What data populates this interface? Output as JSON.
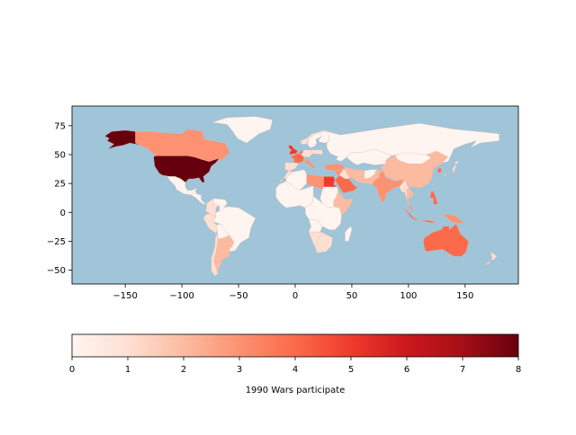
{
  "chart_data": {
    "type": "choropleth-map",
    "title": "",
    "xlabel": "",
    "ylabel": "",
    "xlim": [
      -197,
      197
    ],
    "ylim": [
      -62,
      92
    ],
    "x_ticks": [
      -150,
      -100,
      -50,
      0,
      50,
      100,
      150
    ],
    "y_ticks": [
      -50,
      -25,
      0,
      25,
      50,
      75
    ],
    "x_tick_labels": [
      "−150",
      "−100",
      "−50",
      "0",
      "50",
      "100",
      "150"
    ],
    "y_tick_labels": [
      "−50",
      "−25",
      "0",
      "25",
      "50",
      "75"
    ],
    "ocean_color": "#a0c4d8",
    "colormap": "Reds",
    "colorbar": {
      "label": "1990 Wars participate",
      "range": [
        0,
        8
      ],
      "ticks": [
        0,
        1,
        2,
        3,
        4,
        5,
        6,
        7,
        8
      ],
      "tick_labels": [
        "0",
        "1",
        "2",
        "3",
        "4",
        "5",
        "6",
        "7",
        "8"
      ],
      "orientation": "horizontal"
    },
    "regions": [
      {
        "name": "United States",
        "value": 8
      },
      {
        "name": "Alaska",
        "value": 8
      },
      {
        "name": "Canada",
        "value": 3
      },
      {
        "name": "Greenland",
        "value": 0
      },
      {
        "name": "Mexico",
        "value": 0
      },
      {
        "name": "Central America",
        "value": 0
      },
      {
        "name": "Colombia",
        "value": 1
      },
      {
        "name": "Venezuela",
        "value": 0
      },
      {
        "name": "Brazil",
        "value": 0
      },
      {
        "name": "Peru",
        "value": 1
      },
      {
        "name": "Bolivia",
        "value": 0
      },
      {
        "name": "Chile",
        "value": 1
      },
      {
        "name": "Argentina",
        "value": 2
      },
      {
        "name": "Uruguay",
        "value": 0
      },
      {
        "name": "United Kingdom",
        "value": 5
      },
      {
        "name": "France",
        "value": 4
      },
      {
        "name": "Spain",
        "value": 1
      },
      {
        "name": "Italy",
        "value": 3
      },
      {
        "name": "Germany",
        "value": 1
      },
      {
        "name": "Netherlands",
        "value": 4
      },
      {
        "name": "Norway",
        "value": 1
      },
      {
        "name": "Sweden",
        "value": 0
      },
      {
        "name": "Finland",
        "value": 0
      },
      {
        "name": "Poland",
        "value": 1
      },
      {
        "name": "Turkey",
        "value": 3
      },
      {
        "name": "Russia",
        "value": 0
      },
      {
        "name": "Kazakhstan",
        "value": 0
      },
      {
        "name": "Mongolia",
        "value": 0
      },
      {
        "name": "China",
        "value": 2
      },
      {
        "name": "Japan",
        "value": 1
      },
      {
        "name": "South Korea",
        "value": 4
      },
      {
        "name": "India",
        "value": 3
      },
      {
        "name": "Pakistan",
        "value": 2
      },
      {
        "name": "Afghanistan",
        "value": 0
      },
      {
        "name": "Iran",
        "value": 2
      },
      {
        "name": "Iraq",
        "value": 1
      },
      {
        "name": "Syria",
        "value": 3
      },
      {
        "name": "Saudi Arabia",
        "value": 4
      },
      {
        "name": "Egypt",
        "value": 5
      },
      {
        "name": "Libya",
        "value": 3
      },
      {
        "name": "Algeria",
        "value": 0
      },
      {
        "name": "Morocco",
        "value": 1
      },
      {
        "name": "West Africa",
        "value": 0
      },
      {
        "name": "Sudan",
        "value": 0
      },
      {
        "name": "Ethiopia",
        "value": 2
      },
      {
        "name": "Central Africa",
        "value": 0
      },
      {
        "name": "Angola",
        "value": 0
      },
      {
        "name": "Namibia",
        "value": 1
      },
      {
        "name": "South Africa",
        "value": 1
      },
      {
        "name": "Madagascar",
        "value": 0
      },
      {
        "name": "Thailand",
        "value": 2
      },
      {
        "name": "Myanmar",
        "value": 1
      },
      {
        "name": "Philippines",
        "value": 4
      },
      {
        "name": "Malaysia",
        "value": 3
      },
      {
        "name": "Indonesia",
        "value": 4
      },
      {
        "name": "Papua New Guinea",
        "value": 3
      },
      {
        "name": "Australia",
        "value": 4
      },
      {
        "name": "New Zealand",
        "value": 1
      }
    ]
  }
}
